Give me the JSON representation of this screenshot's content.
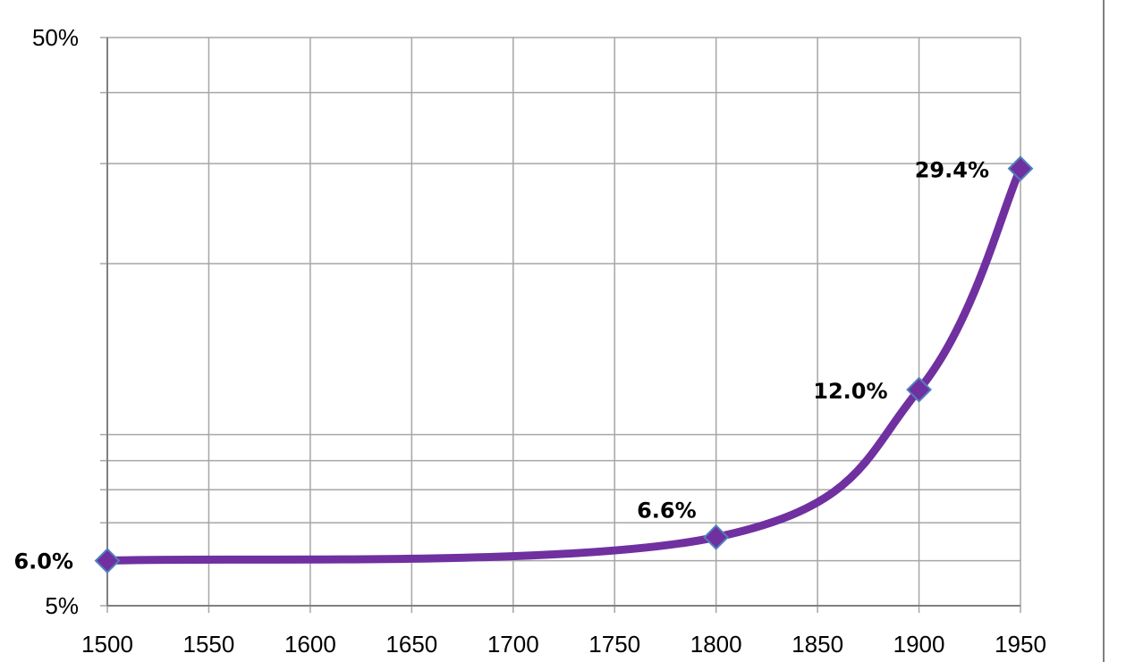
{
  "chart_data": {
    "type": "line",
    "title": "",
    "xlabel": "",
    "ylabel": "",
    "x": [
      1500,
      1800,
      1900,
      1950
    ],
    "series": [
      {
        "values": [
          6.0,
          6.6,
          12.0,
          29.4
        ],
        "labels": [
          "6.0%",
          "6.6%",
          "12.0%",
          "29.4%"
        ],
        "color": "#7030a0",
        "marker_color": "#7030a0",
        "marker_edge_color": "#4f81bd",
        "marker": "diamond",
        "smooth": true
      }
    ],
    "xlim": [
      1500,
      1950
    ],
    "x_ticks": [
      1500,
      1550,
      1600,
      1650,
      1700,
      1750,
      1800,
      1850,
      1900,
      1950
    ],
    "y_scale": "log",
    "ylim": [
      5,
      50
    ],
    "y_tick_labels": [
      {
        "value": 5,
        "label": "5%"
      },
      {
        "value": 50,
        "label": "50%"
      }
    ],
    "y_gridlines": [
      5,
      6,
      7,
      8,
      9,
      10,
      20,
      30,
      40,
      50
    ],
    "grid": true,
    "legend": "none"
  }
}
